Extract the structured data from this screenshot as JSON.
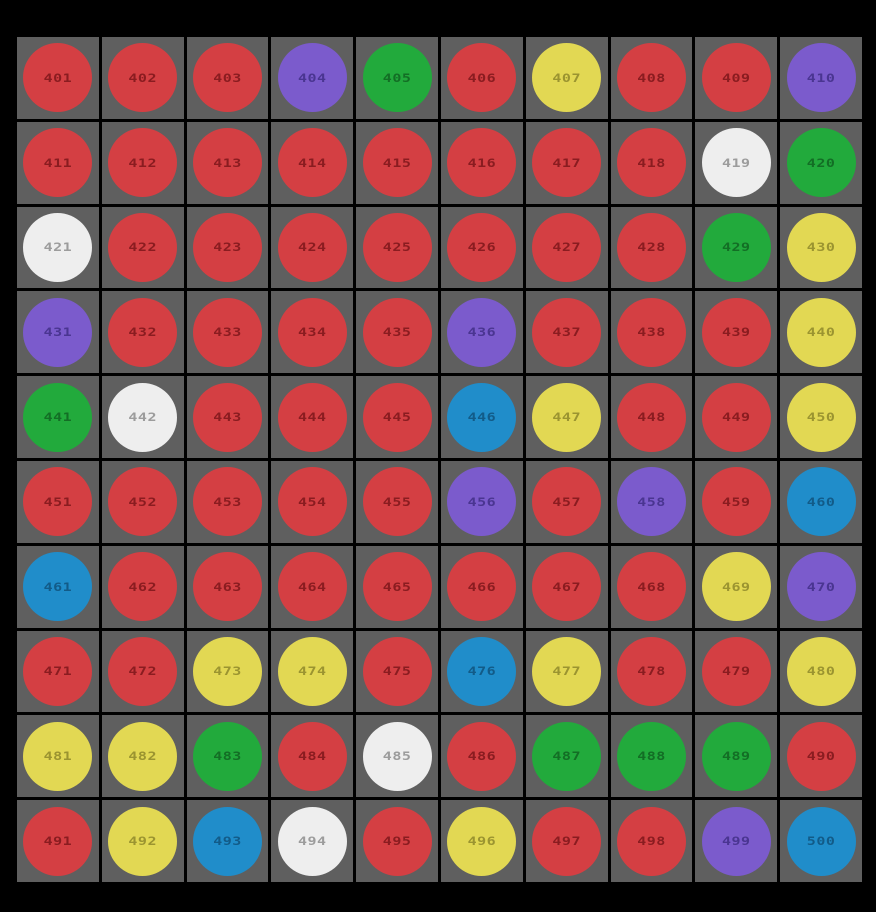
{
  "palette": {
    "red": {
      "fill": "#d43f43",
      "text": "#8a1c20"
    },
    "green": {
      "fill": "#22aa3c",
      "text": "#136e25"
    },
    "yellow": {
      "fill": "#e2d853",
      "text": "#9b9430"
    },
    "purple": {
      "fill": "#7b5bcc",
      "text": "#4a3591"
    },
    "blue": {
      "fill": "#208dca",
      "text": "#125b88"
    },
    "white": {
      "fill": "#eeeeee",
      "text": "#9c9c9c"
    }
  },
  "board": {
    "rows": 10,
    "cols": 10,
    "cell_bg": "#5f5f5f",
    "tiles": [
      {
        "n": "401",
        "color": "red"
      },
      {
        "n": "402",
        "color": "red"
      },
      {
        "n": "403",
        "color": "red"
      },
      {
        "n": "404",
        "color": "purple"
      },
      {
        "n": "405",
        "color": "green"
      },
      {
        "n": "406",
        "color": "red"
      },
      {
        "n": "407",
        "color": "yellow"
      },
      {
        "n": "408",
        "color": "red"
      },
      {
        "n": "409",
        "color": "red"
      },
      {
        "n": "410",
        "color": "purple"
      },
      {
        "n": "411",
        "color": "red"
      },
      {
        "n": "412",
        "color": "red"
      },
      {
        "n": "413",
        "color": "red"
      },
      {
        "n": "414",
        "color": "red"
      },
      {
        "n": "415",
        "color": "red"
      },
      {
        "n": "416",
        "color": "red"
      },
      {
        "n": "417",
        "color": "red"
      },
      {
        "n": "418",
        "color": "red"
      },
      {
        "n": "419",
        "color": "white"
      },
      {
        "n": "420",
        "color": "green"
      },
      {
        "n": "421",
        "color": "white"
      },
      {
        "n": "422",
        "color": "red"
      },
      {
        "n": "423",
        "color": "red"
      },
      {
        "n": "424",
        "color": "red"
      },
      {
        "n": "425",
        "color": "red"
      },
      {
        "n": "426",
        "color": "red"
      },
      {
        "n": "427",
        "color": "red"
      },
      {
        "n": "428",
        "color": "red"
      },
      {
        "n": "429",
        "color": "green"
      },
      {
        "n": "430",
        "color": "yellow"
      },
      {
        "n": "431",
        "color": "purple"
      },
      {
        "n": "432",
        "color": "red"
      },
      {
        "n": "433",
        "color": "red"
      },
      {
        "n": "434",
        "color": "red"
      },
      {
        "n": "435",
        "color": "red"
      },
      {
        "n": "436",
        "color": "purple"
      },
      {
        "n": "437",
        "color": "red"
      },
      {
        "n": "438",
        "color": "red"
      },
      {
        "n": "439",
        "color": "red"
      },
      {
        "n": "440",
        "color": "yellow"
      },
      {
        "n": "441",
        "color": "green"
      },
      {
        "n": "442",
        "color": "white"
      },
      {
        "n": "443",
        "color": "red"
      },
      {
        "n": "444",
        "color": "red"
      },
      {
        "n": "445",
        "color": "red"
      },
      {
        "n": "446",
        "color": "blue"
      },
      {
        "n": "447",
        "color": "yellow"
      },
      {
        "n": "448",
        "color": "red"
      },
      {
        "n": "449",
        "color": "red"
      },
      {
        "n": "450",
        "color": "yellow"
      },
      {
        "n": "451",
        "color": "red"
      },
      {
        "n": "452",
        "color": "red"
      },
      {
        "n": "453",
        "color": "red"
      },
      {
        "n": "454",
        "color": "red"
      },
      {
        "n": "455",
        "color": "red"
      },
      {
        "n": "456",
        "color": "purple"
      },
      {
        "n": "457",
        "color": "red"
      },
      {
        "n": "458",
        "color": "purple"
      },
      {
        "n": "459",
        "color": "red"
      },
      {
        "n": "460",
        "color": "blue"
      },
      {
        "n": "461",
        "color": "blue"
      },
      {
        "n": "462",
        "color": "red"
      },
      {
        "n": "463",
        "color": "red"
      },
      {
        "n": "464",
        "color": "red"
      },
      {
        "n": "465",
        "color": "red"
      },
      {
        "n": "466",
        "color": "red"
      },
      {
        "n": "467",
        "color": "red"
      },
      {
        "n": "468",
        "color": "red"
      },
      {
        "n": "469",
        "color": "yellow"
      },
      {
        "n": "470",
        "color": "purple"
      },
      {
        "n": "471",
        "color": "red"
      },
      {
        "n": "472",
        "color": "red"
      },
      {
        "n": "473",
        "color": "yellow"
      },
      {
        "n": "474",
        "color": "yellow"
      },
      {
        "n": "475",
        "color": "red"
      },
      {
        "n": "476",
        "color": "blue"
      },
      {
        "n": "477",
        "color": "yellow"
      },
      {
        "n": "478",
        "color": "red"
      },
      {
        "n": "479",
        "color": "red"
      },
      {
        "n": "480",
        "color": "yellow"
      },
      {
        "n": "481",
        "color": "yellow"
      },
      {
        "n": "482",
        "color": "yellow"
      },
      {
        "n": "483",
        "color": "green"
      },
      {
        "n": "484",
        "color": "red"
      },
      {
        "n": "485",
        "color": "white"
      },
      {
        "n": "486",
        "color": "red"
      },
      {
        "n": "487",
        "color": "green"
      },
      {
        "n": "488",
        "color": "green"
      },
      {
        "n": "489",
        "color": "green"
      },
      {
        "n": "490",
        "color": "red"
      },
      {
        "n": "491",
        "color": "red"
      },
      {
        "n": "492",
        "color": "yellow"
      },
      {
        "n": "493",
        "color": "blue"
      },
      {
        "n": "494",
        "color": "white"
      },
      {
        "n": "495",
        "color": "red"
      },
      {
        "n": "496",
        "color": "yellow"
      },
      {
        "n": "497",
        "color": "red"
      },
      {
        "n": "498",
        "color": "red"
      },
      {
        "n": "499",
        "color": "purple"
      },
      {
        "n": "500",
        "color": "blue"
      }
    ]
  }
}
